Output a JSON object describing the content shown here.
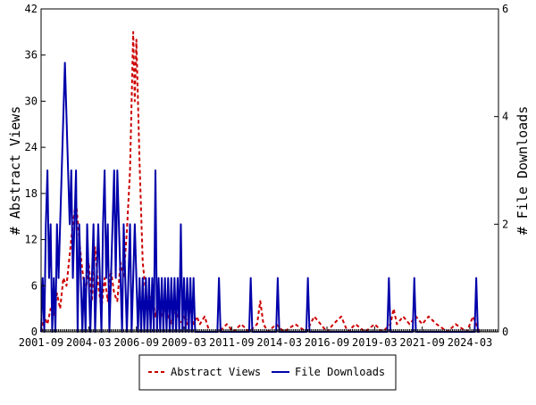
{
  "chart_data": {
    "type": "line",
    "title": "",
    "xlabel": "",
    "ylabel_left": "# Abstract Views",
    "ylabel_right": "# File Downloads",
    "y_left_range": [
      0,
      42
    ],
    "y_left_ticks": [
      "0",
      "6",
      "12",
      "18",
      "24",
      "30",
      "36",
      "42"
    ],
    "y_right_range": [
      0,
      6
    ],
    "y_right_ticks": [
      "0",
      "2",
      "4",
      "6"
    ],
    "x_ticks": [
      "2001-09",
      "2004-03",
      "2006-09",
      "2009-03",
      "2011-09",
      "2014-03",
      "2016-09",
      "2019-03",
      "2021-09",
      "2024-03"
    ],
    "x_start": "2001-09",
    "x_months": 288,
    "grid": false,
    "legend_position": "bottom",
    "series": [
      {
        "name": "Abstract Views",
        "axis": "left",
        "color": "#cc0000",
        "dash": "dashed",
        "points": [
          [
            "2001-09",
            0
          ],
          [
            "2001-11",
            2
          ],
          [
            "2002-01",
            1
          ],
          [
            "2002-03",
            3
          ],
          [
            "2002-05",
            2
          ],
          [
            "2002-07",
            5
          ],
          [
            "2002-09",
            3
          ],
          [
            "2002-11",
            7
          ],
          [
            "2003-01",
            6
          ],
          [
            "2003-03",
            10
          ],
          [
            "2003-05",
            14
          ],
          [
            "2003-07",
            17
          ],
          [
            "2003-09",
            12
          ],
          [
            "2003-11",
            8
          ],
          [
            "2004-01",
            5
          ],
          [
            "2004-03",
            9
          ],
          [
            "2004-05",
            4
          ],
          [
            "2004-07",
            11
          ],
          [
            "2004-09",
            6
          ],
          [
            "2004-11",
            3
          ],
          [
            "2005-01",
            7
          ],
          [
            "2005-03",
            4
          ],
          [
            "2005-05",
            8
          ],
          [
            "2005-07",
            5
          ],
          [
            "2005-09",
            4
          ],
          [
            "2005-11",
            9
          ],
          [
            "2006-01",
            7
          ],
          [
            "2006-03",
            13
          ],
          [
            "2006-05",
            21
          ],
          [
            "2006-07",
            39
          ],
          [
            "2006-08",
            30
          ],
          [
            "2006-09",
            38
          ],
          [
            "2006-11",
            22
          ],
          [
            "2007-01",
            9
          ],
          [
            "2007-03",
            5
          ],
          [
            "2007-05",
            3
          ],
          [
            "2007-07",
            5
          ],
          [
            "2007-09",
            2
          ],
          [
            "2007-11",
            4
          ],
          [
            "2008-01",
            2
          ],
          [
            "2008-03",
            3
          ],
          [
            "2008-05",
            2
          ],
          [
            "2008-07",
            1
          ],
          [
            "2008-09",
            3
          ],
          [
            "2008-11",
            2
          ],
          [
            "2009-01",
            1
          ],
          [
            "2009-03",
            2
          ],
          [
            "2009-05",
            1
          ],
          [
            "2009-07",
            3
          ],
          [
            "2009-09",
            1
          ],
          [
            "2009-11",
            2
          ],
          [
            "2010-01",
            1
          ],
          [
            "2010-04",
            2
          ],
          [
            "2010-07",
            0
          ],
          [
            "2011-01",
            0
          ],
          [
            "2011-06",
            1
          ],
          [
            "2011-10",
            0
          ],
          [
            "2012-03",
            1
          ],
          [
            "2012-08",
            0
          ],
          [
            "2013-01",
            1
          ],
          [
            "2013-03",
            4
          ],
          [
            "2013-05",
            1
          ],
          [
            "2013-08",
            0
          ],
          [
            "2014-01",
            1
          ],
          [
            "2014-06",
            0
          ],
          [
            "2015-01",
            1
          ],
          [
            "2015-08",
            0
          ],
          [
            "2016-01",
            2
          ],
          [
            "2016-05",
            1
          ],
          [
            "2016-09",
            0
          ],
          [
            "2017-01",
            1
          ],
          [
            "2017-06",
            2
          ],
          [
            "2017-10",
            0
          ],
          [
            "2018-03",
            1
          ],
          [
            "2018-09",
            0
          ],
          [
            "2019-03",
            1
          ],
          [
            "2019-08",
            0
          ],
          [
            "2020-01",
            1
          ],
          [
            "2020-03",
            3
          ],
          [
            "2020-05",
            1
          ],
          [
            "2020-09",
            2
          ],
          [
            "2021-01",
            1
          ],
          [
            "2021-05",
            2
          ],
          [
            "2021-09",
            1
          ],
          [
            "2022-01",
            2
          ],
          [
            "2022-06",
            1
          ],
          [
            "2023-01",
            0
          ],
          [
            "2023-06",
            1
          ],
          [
            "2024-01",
            0
          ],
          [
            "2024-03",
            1
          ],
          [
            "2024-05",
            2
          ],
          [
            "2024-09",
            0
          ]
        ]
      },
      {
        "name": "File Downloads",
        "axis": "right",
        "color": "#0000aa",
        "dash": "solid",
        "points": [
          [
            "2001-09",
            0
          ],
          [
            "2001-10",
            1
          ],
          [
            "2001-11",
            0
          ],
          [
            "2001-12",
            2
          ],
          [
            "2002-01",
            3
          ],
          [
            "2002-02",
            1
          ],
          [
            "2002-03",
            2
          ],
          [
            "2002-04",
            0
          ],
          [
            "2002-05",
            1
          ],
          [
            "2002-06",
            0
          ],
          [
            "2002-07",
            2
          ],
          [
            "2002-08",
            1
          ],
          [
            "2002-09",
            2
          ],
          [
            "2002-10",
            3
          ],
          [
            "2002-11",
            4
          ],
          [
            "2002-12",
            5
          ],
          [
            "2003-01",
            4
          ],
          [
            "2003-02",
            3
          ],
          [
            "2003-03",
            2
          ],
          [
            "2003-04",
            3
          ],
          [
            "2003-05",
            1
          ],
          [
            "2003-06",
            2
          ],
          [
            "2003-07",
            3
          ],
          [
            "2003-08",
            0
          ],
          [
            "2003-09",
            2
          ],
          [
            "2003-10",
            1
          ],
          [
            "2003-11",
            0
          ],
          [
            "2003-12",
            1
          ],
          [
            "2004-01",
            0
          ],
          [
            "2004-02",
            2
          ],
          [
            "2004-03",
            1
          ],
          [
            "2004-04",
            0
          ],
          [
            "2004-05",
            1
          ],
          [
            "2004-06",
            2
          ],
          [
            "2004-07",
            0
          ],
          [
            "2004-08",
            1
          ],
          [
            "2004-09",
            2
          ],
          [
            "2004-10",
            1
          ],
          [
            "2004-11",
            0
          ],
          [
            "2004-12",
            2
          ],
          [
            "2005-01",
            3
          ],
          [
            "2005-02",
            1
          ],
          [
            "2005-03",
            2
          ],
          [
            "2005-04",
            0
          ],
          [
            "2005-05",
            1
          ],
          [
            "2005-06",
            2
          ],
          [
            "2005-07",
            3
          ],
          [
            "2005-08",
            1
          ],
          [
            "2005-09",
            3
          ],
          [
            "2005-10",
            2
          ],
          [
            "2005-11",
            1
          ],
          [
            "2005-12",
            0
          ],
          [
            "2006-01",
            2
          ],
          [
            "2006-02",
            1
          ],
          [
            "2006-03",
            0
          ],
          [
            "2006-04",
            1
          ],
          [
            "2006-05",
            2
          ],
          [
            "2006-06",
            0
          ],
          [
            "2006-07",
            1
          ],
          [
            "2006-08",
            2
          ],
          [
            "2006-09",
            1
          ],
          [
            "2006-10",
            0
          ],
          [
            "2006-11",
            1
          ],
          [
            "2006-12",
            0
          ],
          [
            "2007-01",
            1
          ],
          [
            "2007-02",
            0
          ],
          [
            "2007-03",
            1
          ],
          [
            "2007-04",
            0
          ],
          [
            "2007-05",
            1
          ],
          [
            "2007-06",
            0
          ],
          [
            "2007-07",
            1
          ],
          [
            "2007-08",
            0
          ],
          [
            "2007-09",
            3
          ],
          [
            "2007-10",
            0
          ],
          [
            "2007-11",
            1
          ],
          [
            "2007-12",
            0
          ],
          [
            "2008-01",
            1
          ],
          [
            "2008-02",
            0
          ],
          [
            "2008-03",
            1
          ],
          [
            "2008-04",
            0
          ],
          [
            "2008-05",
            1
          ],
          [
            "2008-06",
            0
          ],
          [
            "2008-07",
            1
          ],
          [
            "2008-08",
            0
          ],
          [
            "2008-09",
            1
          ],
          [
            "2008-10",
            0
          ],
          [
            "2008-11",
            1
          ],
          [
            "2008-12",
            0
          ],
          [
            "2009-01",
            2
          ],
          [
            "2009-02",
            0
          ],
          [
            "2009-03",
            1
          ],
          [
            "2009-04",
            0
          ],
          [
            "2009-05",
            1
          ],
          [
            "2009-06",
            0
          ],
          [
            "2009-07",
            1
          ],
          [
            "2009-08",
            0
          ],
          [
            "2009-09",
            1
          ],
          [
            "2009-10",
            0
          ],
          [
            "2010-01",
            0
          ],
          [
            "2010-12",
            0
          ],
          [
            "2011-01",
            1
          ],
          [
            "2011-02",
            0
          ],
          [
            "2012-08",
            0
          ],
          [
            "2012-09",
            1
          ],
          [
            "2012-10",
            0
          ],
          [
            "2014-01",
            0
          ],
          [
            "2014-02",
            1
          ],
          [
            "2014-03",
            0
          ],
          [
            "2015-08",
            0
          ],
          [
            "2015-09",
            1
          ],
          [
            "2015-10",
            0
          ],
          [
            "2019-11",
            0
          ],
          [
            "2019-12",
            1
          ],
          [
            "2020-01",
            0
          ],
          [
            "2021-03",
            0
          ],
          [
            "2021-04",
            1
          ],
          [
            "2021-05",
            0
          ],
          [
            "2024-06",
            0
          ],
          [
            "2024-07",
            1
          ],
          [
            "2024-08",
            0
          ],
          [
            "2024-09",
            0
          ]
        ]
      }
    ]
  }
}
